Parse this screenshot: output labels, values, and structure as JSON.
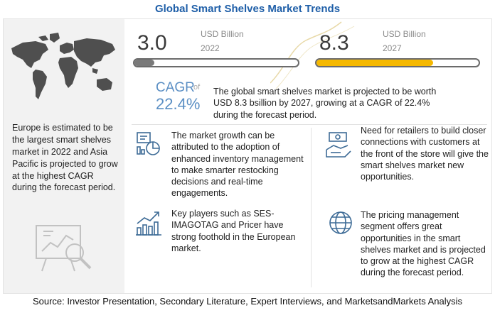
{
  "title": "Global Smart Shelves Market Trends",
  "left_panel": {
    "region_text": "Europe is estimated to be the largest smart shelves market in 2022 and Asia Pacific is projected to grow at the highest CAGR during the forecast period."
  },
  "kpis": [
    {
      "value": "3.0",
      "unit": "USD Billion",
      "year": "2022",
      "fill_fraction": 0.12,
      "color": "#7a7a7a"
    },
    {
      "value": "8.3",
      "unit": "USD Billion",
      "year": "2027",
      "fill_fraction": 0.72,
      "color": "#f5b800"
    }
  ],
  "cagr": {
    "label": "CAGR",
    "of": "of",
    "value": "22.4%",
    "description": "The global smart shelves market is projected to be worth USD 8.3 bsillion by 2027, growing at a CAGR of 22.4% during the forecast period."
  },
  "insights": [
    {
      "icon": "growth-analytics-icon",
      "text": "The market growth can be attributed to the adoption of enhanced inventory management to make smarter restocking decisions and real-time engagements."
    },
    {
      "icon": "bar-chart-growth-icon",
      "text": "Key players such as SES-IMAGOTAG and Pricer have strong foothold in the European market."
    },
    {
      "icon": "customer-connection-icon",
      "text": "Need for retailers to build closer connections with customers at the front of the store will give the smart shelves market new opportunities."
    },
    {
      "icon": "globe-pricing-icon",
      "text": "The pricing management segment offers great opportunities in the smart shelves market and is projected to grow at the highest CAGR during the forecast period."
    }
  ],
  "source": "Source: Investor Presentation, Secondary Literature, Expert Interviews, and MarketsandMarkets Analysis",
  "colors": {
    "title": "#1f5fa8",
    "accent_blue": "#5b8fc4",
    "accent_yellow": "#f5b800",
    "bar_grey": "#7a7a7a",
    "panel_grey": "#f2f2f2"
  }
}
